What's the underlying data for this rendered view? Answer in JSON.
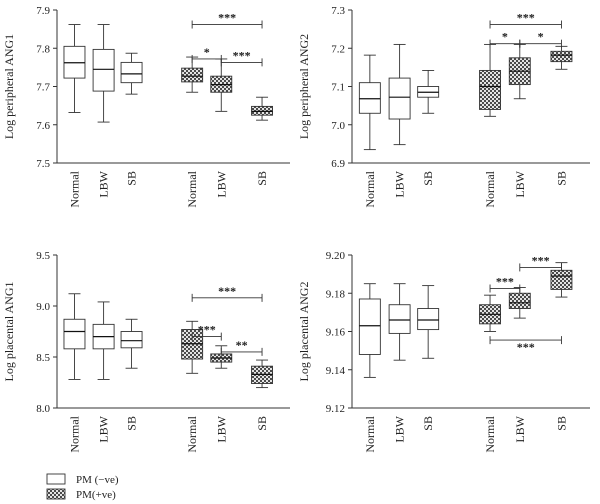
{
  "legend": {
    "items": [
      {
        "label": "PM (−ve)",
        "fill": "plain"
      },
      {
        "label": "PM(+ve)",
        "fill": "checker"
      }
    ]
  },
  "colors": {
    "axis": "#333333",
    "box_fill": "#ffffff",
    "hatch_dark": "#4a4a4a",
    "hatch_light": "#e4e4e4"
  },
  "chart_data": [
    {
      "type": "box",
      "ylabel": "Log peripheral ANG1",
      "ylim": [
        7.5,
        7.9
      ],
      "yticks": [
        "7.5",
        "7.6",
        "7.7",
        "7.8",
        "7.9"
      ],
      "categories": [
        "Normal",
        "LBW",
        "SB",
        "Normal",
        "LBW",
        "SB"
      ],
      "groups": [
        "PM (−ve)",
        "PM (−ve)",
        "PM (−ve)",
        "PM(+ve)",
        "PM(+ve)",
        "PM(+ve)"
      ],
      "boxes": [
        {
          "min": 7.632,
          "q1": 7.722,
          "median": 7.762,
          "q3": 7.805,
          "max": 7.862
        },
        {
          "min": 7.607,
          "q1": 7.688,
          "median": 7.745,
          "q3": 7.797,
          "max": 7.862
        },
        {
          "min": 7.68,
          "q1": 7.71,
          "median": 7.733,
          "q3": 7.763,
          "max": 7.787
        },
        {
          "min": 7.685,
          "q1": 7.712,
          "median": 7.727,
          "q3": 7.748,
          "max": 7.777
        },
        {
          "min": 7.635,
          "q1": 7.685,
          "median": 7.705,
          "q3": 7.727,
          "max": 7.772
        },
        {
          "min": 7.612,
          "q1": 7.625,
          "median": 7.635,
          "q3": 7.648,
          "max": 7.672
        }
      ],
      "significance": [
        {
          "from": 3,
          "to": 5,
          "label": "***",
          "y": 7.862
        },
        {
          "from": 3,
          "to": 4,
          "label": "*",
          "y": 7.772
        },
        {
          "from": 4,
          "to": 5,
          "label": "***",
          "y": 7.763
        }
      ]
    },
    {
      "type": "box",
      "ylabel": "Log peripheral ANG2",
      "ylim": [
        6.9,
        7.3
      ],
      "yticks": [
        "6.9",
        "7.0",
        "7.1",
        "7.2",
        "7.3"
      ],
      "categories": [
        "Normal",
        "LBW",
        "SB",
        "Normal",
        "LBW",
        "SB"
      ],
      "groups": [
        "PM (−ve)",
        "PM (−ve)",
        "PM (−ve)",
        "PM(+ve)",
        "PM(+ve)",
        "PM(+ve)"
      ],
      "boxes": [
        {
          "min": 6.935,
          "q1": 7.03,
          "median": 7.068,
          "q3": 7.11,
          "max": 7.182
        },
        {
          "min": 6.948,
          "q1": 7.015,
          "median": 7.072,
          "q3": 7.122,
          "max": 7.21
        },
        {
          "min": 7.03,
          "q1": 7.072,
          "median": 7.085,
          "q3": 7.1,
          "max": 7.142
        },
        {
          "min": 7.022,
          "q1": 7.04,
          "median": 7.1,
          "q3": 7.142,
          "max": 7.21
        },
        {
          "min": 7.068,
          "q1": 7.105,
          "median": 7.14,
          "q3": 7.175,
          "max": 7.21
        },
        {
          "min": 7.145,
          "q1": 7.165,
          "median": 7.182,
          "q3": 7.192,
          "max": 7.205
        }
      ],
      "significance": [
        {
          "from": 3,
          "to": 5,
          "label": "***",
          "y": 7.262
        },
        {
          "from": 3,
          "to": 4,
          "label": "*",
          "y": 7.212
        },
        {
          "from": 4,
          "to": 5,
          "label": "*",
          "y": 7.212
        }
      ]
    },
    {
      "type": "box",
      "ylabel": "Log placental ANG1",
      "ylim": [
        8.0,
        9.5
      ],
      "yticks": [
        "8.0",
        "8.5",
        "9.0",
        "9.5"
      ],
      "categories": [
        "Normal",
        "LBW",
        "SB",
        "Normal",
        "LBW",
        "SB"
      ],
      "groups": [
        "PM (−ve)",
        "PM (−ve)",
        "PM (−ve)",
        "PM(+ve)",
        "PM(+ve)",
        "PM(+ve)"
      ],
      "boxes": [
        {
          "min": 8.28,
          "q1": 8.58,
          "median": 8.75,
          "q3": 8.87,
          "max": 9.12
        },
        {
          "min": 8.28,
          "q1": 8.58,
          "median": 8.7,
          "q3": 8.82,
          "max": 9.04
        },
        {
          "min": 8.39,
          "q1": 8.59,
          "median": 8.66,
          "q3": 8.75,
          "max": 8.87
        },
        {
          "min": 8.34,
          "q1": 8.48,
          "median": 8.63,
          "q3": 8.77,
          "max": 8.85
        },
        {
          "min": 8.39,
          "q1": 8.45,
          "median": 8.49,
          "q3": 8.53,
          "max": 8.61
        },
        {
          "min": 8.2,
          "q1": 8.24,
          "median": 8.33,
          "q3": 8.41,
          "max": 8.47
        }
      ],
      "significance": [
        {
          "from": 3,
          "to": 5,
          "label": "***",
          "y": 9.08
        },
        {
          "from": 3,
          "to": 4,
          "label": "***",
          "y": 8.7
        },
        {
          "from": 4,
          "to": 5,
          "label": "**",
          "y": 8.55
        }
      ]
    },
    {
      "type": "box",
      "ylabel": "Log placental ANG2",
      "ylim": [
        9.12,
        9.2
      ],
      "yticks": [
        "9.12",
        "9.14",
        "9.16",
        "9.18",
        "9.20"
      ],
      "categories": [
        "Normal",
        "LBW",
        "SB",
        "Normal",
        "LBW",
        "SB"
      ],
      "groups": [
        "PM (−ve)",
        "PM (−ve)",
        "PM (−ve)",
        "PM(+ve)",
        "PM(+ve)",
        "PM(+ve)"
      ],
      "boxes": [
        {
          "min": 9.136,
          "q1": 9.148,
          "median": 9.163,
          "q3": 9.177,
          "max": 9.185
        },
        {
          "min": 9.145,
          "q1": 9.159,
          "median": 9.166,
          "q3": 9.174,
          "max": 9.185
        },
        {
          "min": 9.146,
          "q1": 9.161,
          "median": 9.166,
          "q3": 9.172,
          "max": 9.184
        },
        {
          "min": 9.16,
          "q1": 9.164,
          "median": 9.169,
          "q3": 9.174,
          "max": 9.179
        },
        {
          "min": 9.167,
          "q1": 9.172,
          "median": 9.175,
          "q3": 9.18,
          "max": 9.183
        },
        {
          "min": 9.178,
          "q1": 9.182,
          "median": 9.189,
          "q3": 9.192,
          "max": 9.196
        }
      ],
      "significance": [
        {
          "from": 3,
          "to": 4,
          "label": "***",
          "y": 9.1825
        },
        {
          "from": 4,
          "to": 5,
          "label": "***",
          "y": 9.1935
        },
        {
          "from": 3,
          "to": 5,
          "label": "***",
          "y": 9.1555,
          "label_below": true
        }
      ]
    }
  ]
}
